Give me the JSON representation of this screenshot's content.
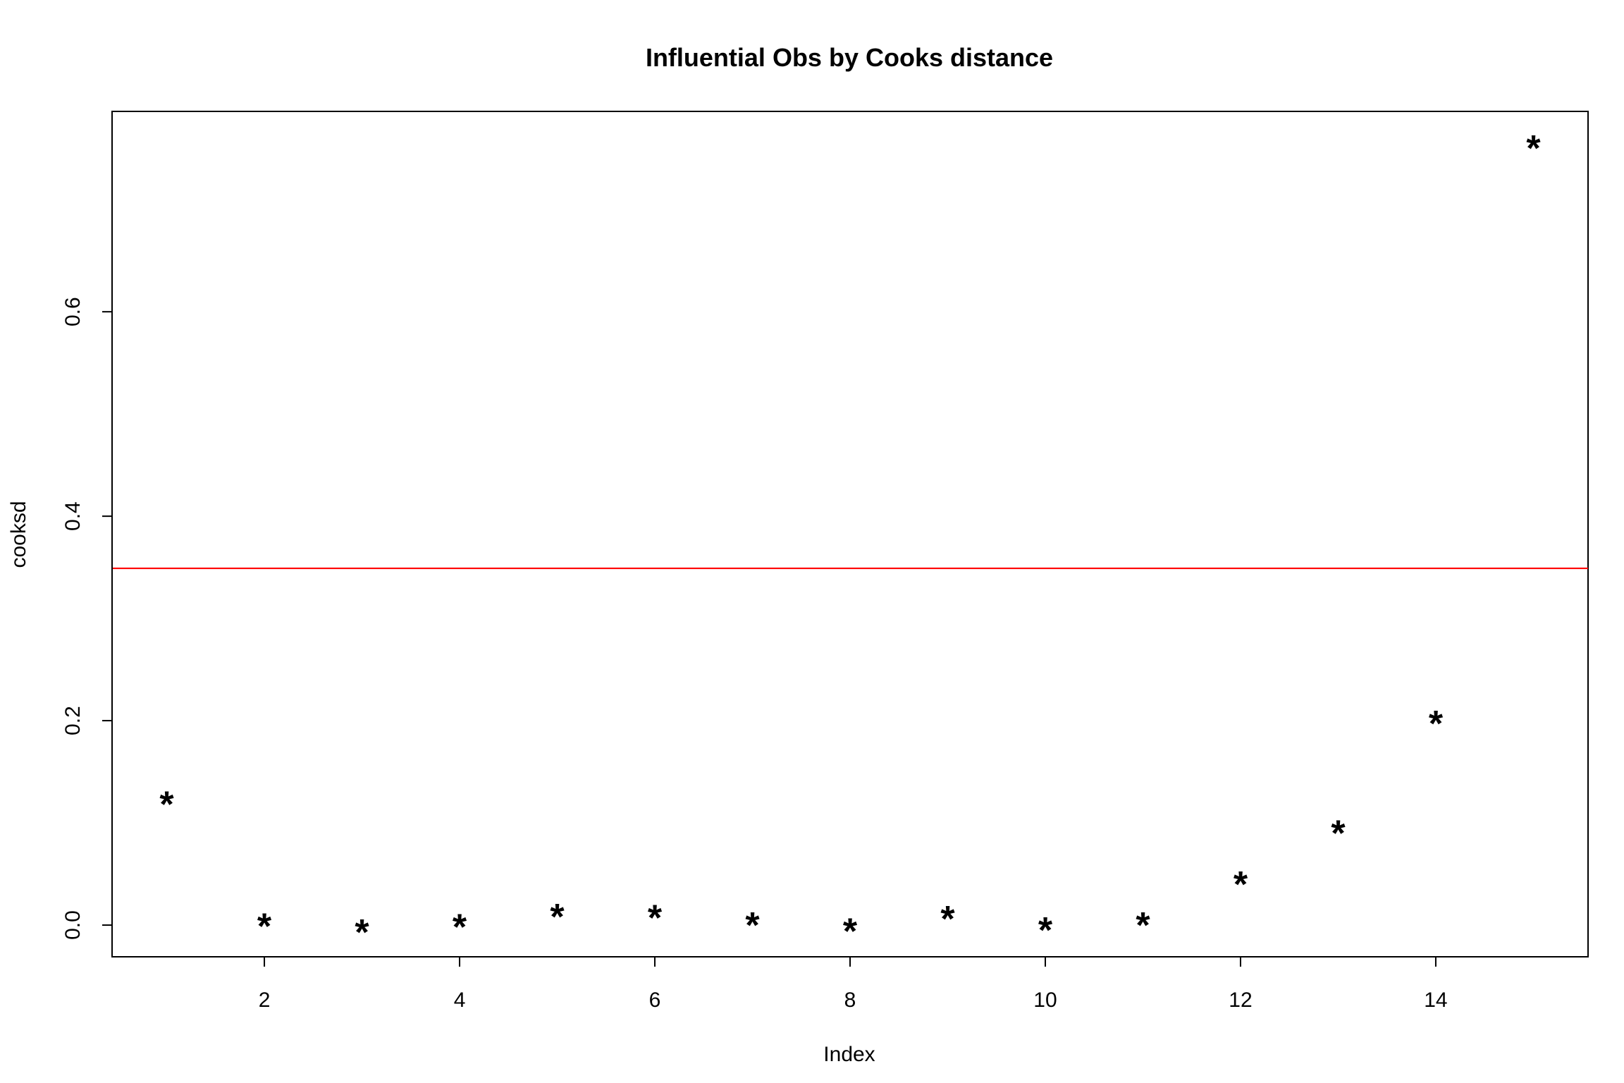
{
  "chart_data": {
    "type": "scatter",
    "title": "Influential Obs by Cooks distance",
    "xlabel": "Index",
    "ylabel": "cooksd",
    "x": [
      1,
      2,
      3,
      4,
      5,
      6,
      7,
      8,
      9,
      10,
      11,
      12,
      13,
      14,
      15
    ],
    "values": [
      0.123,
      0.004,
      -0.002,
      0.003,
      0.013,
      0.012,
      0.005,
      -0.001,
      0.011,
      0.0,
      0.005,
      0.045,
      0.095,
      0.202,
      0.765
    ],
    "xlim": [
      0.44,
      15.56
    ],
    "ylim": [
      -0.031,
      0.796
    ],
    "xticks": [
      2,
      4,
      6,
      8,
      10,
      12,
      14
    ],
    "xtick_labels": [
      "2",
      "4",
      "6",
      "8",
      "10",
      "12",
      14
    ],
    "yticks": [
      0.0,
      0.2,
      0.4,
      0.6
    ],
    "ytick_labels": [
      "0.0",
      "0.2",
      "0.4",
      "0.6"
    ],
    "marker": "*",
    "marker_color": "#000000",
    "reference_line": {
      "y": 0.349,
      "color": "#ff0000"
    },
    "grid": false,
    "legend": "none"
  }
}
